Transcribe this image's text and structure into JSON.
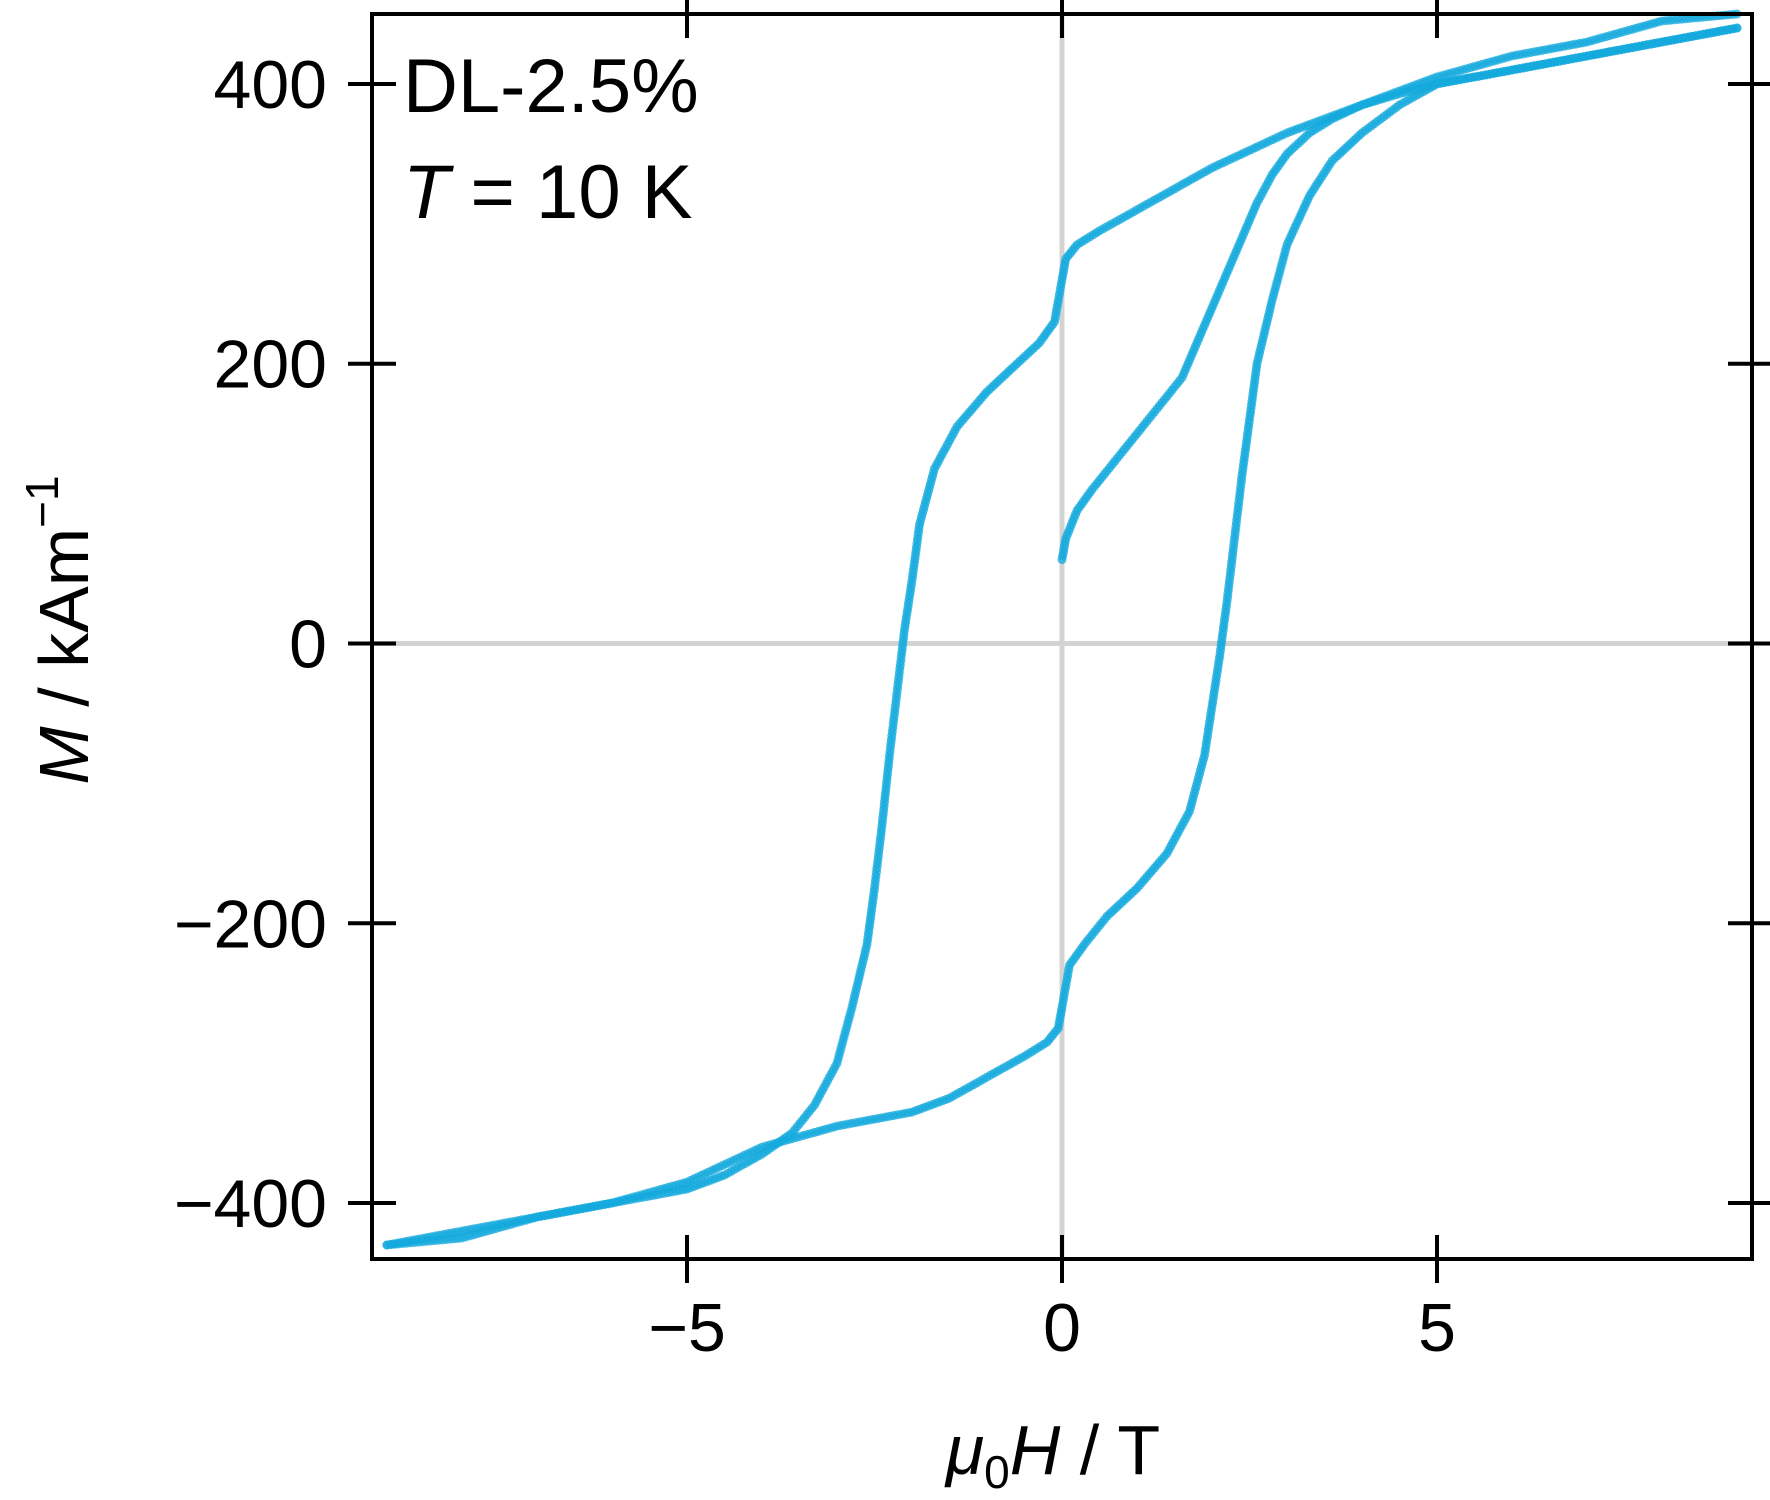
{
  "chart_data": {
    "type": "scatter",
    "annotation": {
      "line1": "DL-2.5%",
      "line2_var": "T",
      "line2_rest": " = 10 K"
    },
    "xlabel": {
      "main": "μ",
      "sub": "0",
      "var": "H",
      "unit": " / T"
    },
    "ylabel": {
      "var": "M",
      "unit": " / kAm",
      "sup": "−1"
    },
    "xlim": [
      -9.2,
      9.2
    ],
    "ylim": [
      -440,
      450
    ],
    "xticks": [
      {
        "value": -5,
        "label": "−5"
      },
      {
        "value": 0,
        "label": "0"
      },
      {
        "value": 5,
        "label": "5"
      }
    ],
    "yticks": [
      {
        "value": -400,
        "label": "−400"
      },
      {
        "value": -200,
        "label": "−200"
      },
      {
        "value": 0,
        "label": "0"
      },
      {
        "value": 200,
        "label": "200"
      },
      {
        "value": 400,
        "label": "400"
      }
    ],
    "zero_lines": true,
    "color": "#14a9dc",
    "series": [
      {
        "segment": "virgin",
        "x": [
          0.0,
          0.05,
          0.2,
          0.4,
          0.7,
          1.0,
          1.3,
          1.6,
          1.8,
          2.0,
          2.2,
          2.4,
          2.6,
          2.8,
          3.0,
          3.3,
          3.6,
          4.0,
          4.5,
          5.0,
          6.0,
          7.0,
          8.0,
          9.0
        ],
        "y": [
          60,
          75,
          95,
          110,
          130,
          150,
          170,
          190,
          215,
          240,
          265,
          290,
          315,
          335,
          350,
          365,
          375,
          385,
          393,
          400,
          410,
          420,
          430,
          440
        ]
      },
      {
        "segment": "descending",
        "x": [
          9.0,
          8.0,
          7.0,
          6.0,
          5.0,
          4.0,
          3.0,
          2.0,
          1.5,
          1.0,
          0.5,
          0.2,
          0.05,
          0.0,
          -0.1,
          -0.3,
          -0.6,
          -1.0,
          -1.4,
          -1.7,
          -1.9,
          -2.0,
          -2.1,
          -2.2,
          -2.3,
          -2.4,
          -2.5,
          -2.6,
          -2.8,
          -3.0,
          -3.3,
          -3.6,
          -4.0,
          -4.5,
          -5.0,
          -6.0,
          -7.0,
          -8.0,
          -9.0
        ],
        "y": [
          450,
          445,
          430,
          420,
          405,
          385,
          365,
          340,
          325,
          310,
          295,
          285,
          275,
          260,
          230,
          215,
          200,
          180,
          155,
          125,
          85,
          45,
          10,
          -35,
          -80,
          -130,
          -175,
          -215,
          -260,
          -300,
          -330,
          -350,
          -365,
          -380,
          -390,
          -400,
          -410,
          -420,
          -430
        ]
      },
      {
        "segment": "ascending",
        "x": [
          -9.0,
          -8.0,
          -7.0,
          -6.0,
          -5.0,
          -4.0,
          -3.0,
          -2.0,
          -1.5,
          -1.0,
          -0.5,
          -0.2,
          -0.05,
          0.0,
          0.1,
          0.3,
          0.6,
          1.0,
          1.4,
          1.7,
          1.9,
          2.0,
          2.1,
          2.2,
          2.3,
          2.4,
          2.5,
          2.6,
          2.8,
          3.0,
          3.3,
          3.6,
          4.0,
          4.5,
          5.0,
          6.0,
          7.0,
          8.0,
          9.0
        ],
        "y": [
          -430,
          -425,
          -410,
          -400,
          -385,
          -360,
          -345,
          -335,
          -325,
          -310,
          -295,
          -285,
          -275,
          -260,
          -230,
          -215,
          -195,
          -175,
          -150,
          -120,
          -80,
          -45,
          -10,
          30,
          75,
          120,
          160,
          200,
          245,
          285,
          320,
          345,
          365,
          385,
          400,
          410,
          420,
          430,
          440
        ]
      }
    ]
  }
}
